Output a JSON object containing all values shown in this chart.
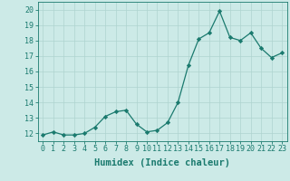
{
  "xlabel": "Humidex (Indice chaleur)",
  "ylabel": "",
  "x": [
    0,
    1,
    2,
    3,
    4,
    5,
    6,
    7,
    8,
    9,
    10,
    11,
    12,
    13,
    14,
    15,
    16,
    17,
    18,
    19,
    20,
    21,
    22,
    23
  ],
  "y": [
    11.9,
    12.1,
    11.9,
    11.9,
    12.0,
    12.4,
    13.1,
    13.4,
    13.5,
    12.6,
    12.1,
    12.2,
    12.7,
    14.0,
    16.4,
    18.1,
    18.5,
    19.9,
    18.2,
    18.0,
    18.5,
    17.5,
    16.9,
    17.2
  ],
  "line_color": "#1a7a6e",
  "marker": "D",
  "marker_size": 2.2,
  "bg_color": "#cceae7",
  "grid_color": "#aed4d0",
  "ylim": [
    11.5,
    20.5
  ],
  "xlim": [
    -0.5,
    23.5
  ],
  "yticks": [
    12,
    13,
    14,
    15,
    16,
    17,
    18,
    19,
    20
  ],
  "xticks": [
    0,
    1,
    2,
    3,
    4,
    5,
    6,
    7,
    8,
    9,
    10,
    11,
    12,
    13,
    14,
    15,
    16,
    17,
    18,
    19,
    20,
    21,
    22,
    23
  ],
  "tick_label_fontsize": 6.0,
  "xlabel_fontsize": 7.5,
  "tick_color": "#1a7a6e",
  "axis_color": "#1a7a6e",
  "linewidth": 0.9
}
